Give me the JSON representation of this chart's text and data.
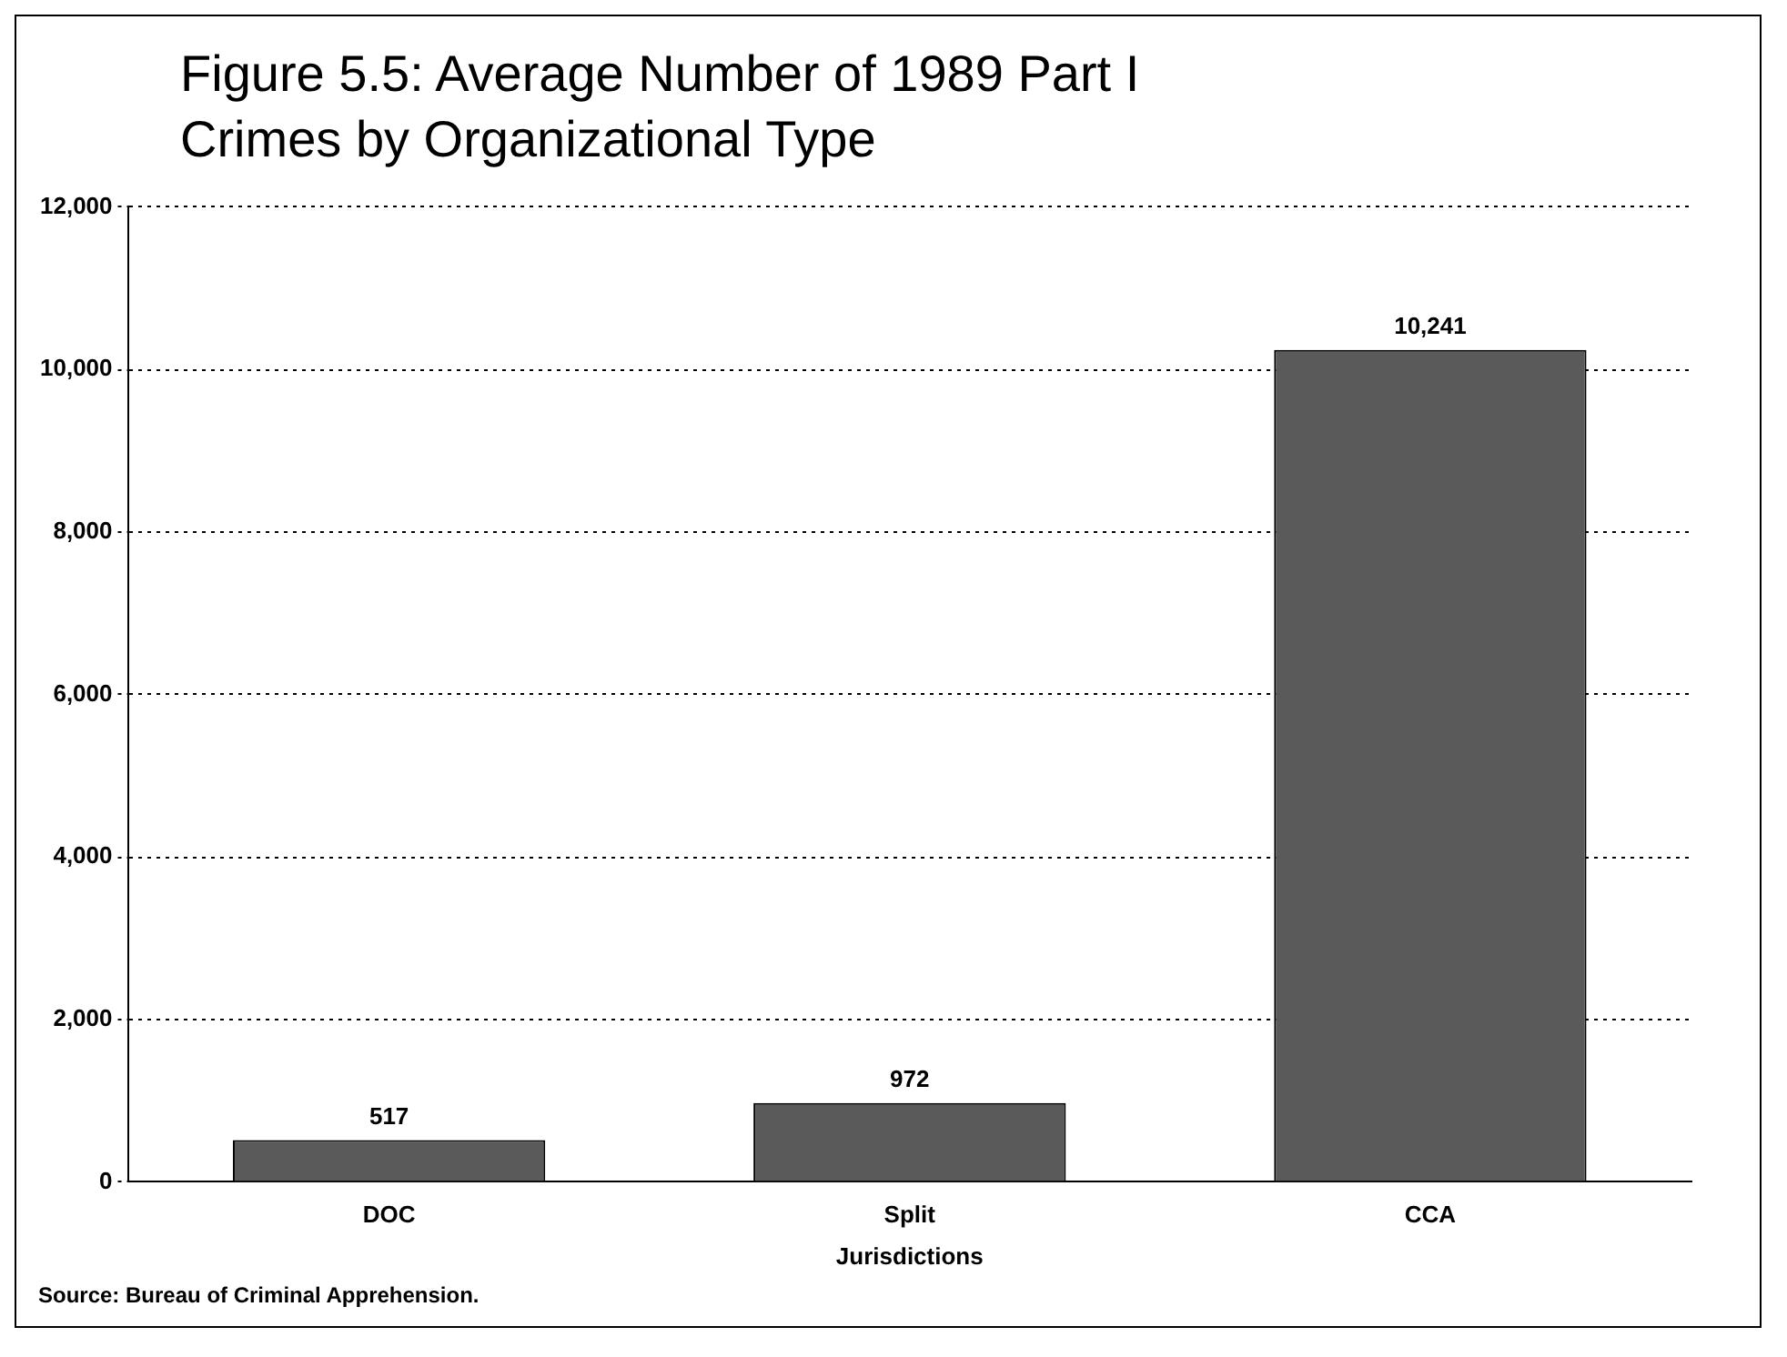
{
  "chart_data": {
    "type": "bar",
    "title": "Figure 5.5:  Average Number of 1989 Part I Crimes by Organizational Type",
    "xlabel": "Jurisdictions",
    "categories": [
      "DOC",
      "Split",
      "CCA"
    ],
    "values": [
      517,
      972,
      10241
    ],
    "value_labels": [
      "517",
      "972",
      "10,241"
    ],
    "color": "#5a5a5a",
    "ylim": [
      0,
      12000
    ],
    "yticks": [
      0,
      {
        "value": 2000,
        "label": "2,000"
      },
      {
        "value": 4000,
        "label": "4,000"
      },
      {
        "value": 6000,
        "label": "6,000"
      },
      {
        "value": 8000,
        "label": "8,000"
      },
      {
        "value": 10000,
        "label": "10,000"
      },
      {
        "value": 12000,
        "label": "12,000"
      }
    ],
    "grid": "y",
    "annotations": [
      "Source: Bureau of Criminal Apprehension."
    ]
  }
}
